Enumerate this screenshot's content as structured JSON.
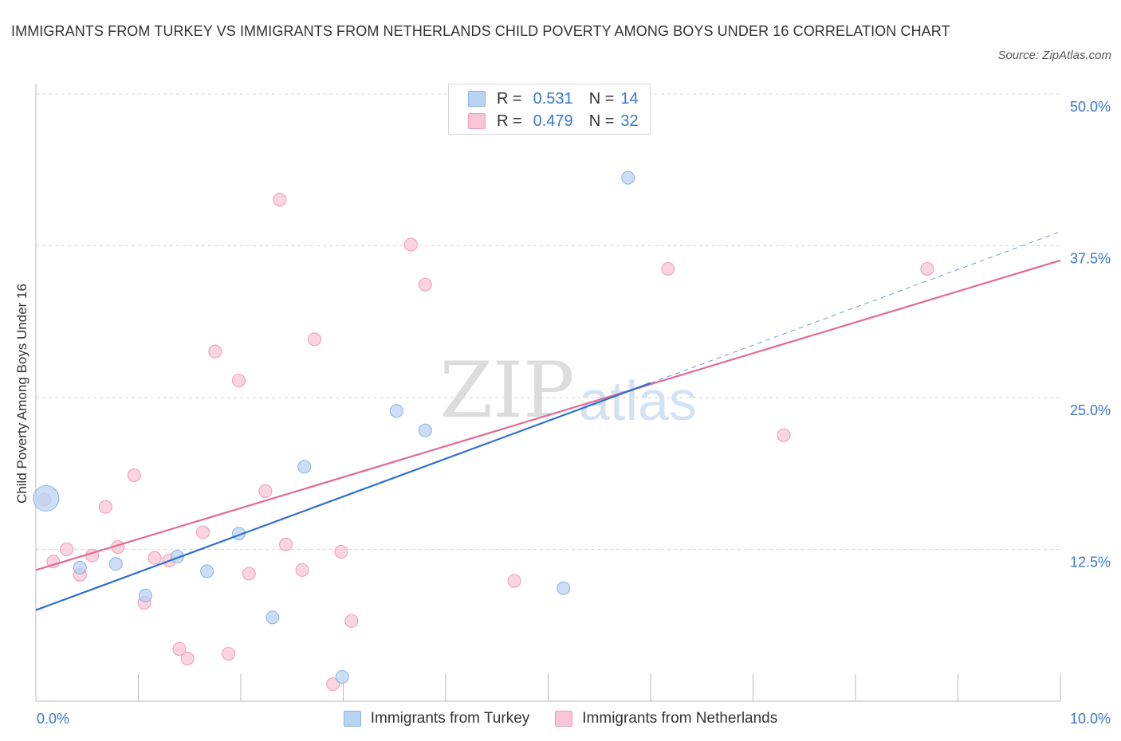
{
  "title": "IMMIGRANTS FROM TURKEY VS IMMIGRANTS FROM NETHERLANDS CHILD POVERTY AMONG BOYS UNDER 16 CORRELATION CHART",
  "source": "Source: ZipAtlas.com",
  "watermark": {
    "zip": "ZIP",
    "atlas": "atlas"
  },
  "colors": {
    "turkey_fill": "#b9d3f2",
    "turkey_stroke": "#8ab1e4",
    "turkey_line": "#2f6fcf",
    "netherlands_fill": "#f8c6d5",
    "netherlands_stroke": "#ee9ab5",
    "netherlands_line": "#e06b93",
    "value_text": "#3a78c9",
    "grid": "#d6d6d6"
  },
  "legend_top": [
    {
      "r_label": "R =",
      "r_value": "0.531",
      "n_label": "N =",
      "n_value": "14"
    },
    {
      "r_label": "R =",
      "r_value": "0.479",
      "n_label": "N =",
      "n_value": "32"
    }
  ],
  "legend_bottom": [
    "Immigrants from Turkey",
    "Immigrants from Netherlands"
  ],
  "chart_data": {
    "type": "scatter",
    "title": "IMMIGRANTS FROM TURKEY VS IMMIGRANTS FROM NETHERLANDS CHILD POVERTY AMONG BOYS UNDER 16 CORRELATION CHART",
    "xlabel": "",
    "ylabel": "Child Poverty Among Boys Under 16",
    "xlim": [
      0,
      10
    ],
    "ylim": [
      0,
      50
    ],
    "x_tick_labels": [
      "0.0%",
      "10.0%"
    ],
    "y_ticks": [
      12.5,
      25.0,
      37.5,
      50.0
    ],
    "y_tick_labels": [
      "12.5%",
      "25.0%",
      "37.5%",
      "50.0%"
    ],
    "grid": "horizontal dashed",
    "legend_position": "bottom",
    "series": [
      {
        "name": "Immigrants from Turkey",
        "r": 0.531,
        "n": 14,
        "points": [
          {
            "x": 0.1,
            "y": 16.7,
            "large": true
          },
          {
            "x": 0.43,
            "y": 11.0
          },
          {
            "x": 0.78,
            "y": 11.3
          },
          {
            "x": 1.07,
            "y": 8.7
          },
          {
            "x": 1.38,
            "y": 11.9
          },
          {
            "x": 1.67,
            "y": 10.7
          },
          {
            "x": 1.98,
            "y": 13.8
          },
          {
            "x": 2.31,
            "y": 6.9
          },
          {
            "x": 2.62,
            "y": 19.3
          },
          {
            "x": 2.99,
            "y": 2.0
          },
          {
            "x": 3.52,
            "y": 23.9
          },
          {
            "x": 3.8,
            "y": 22.3
          },
          {
            "x": 5.15,
            "y": 9.3
          },
          {
            "x": 5.78,
            "y": 43.1
          }
        ],
        "trend": {
          "x": [
            0,
            6.0
          ],
          "y": [
            7.5,
            26.2
          ]
        }
      },
      {
        "name": "Immigrants from Netherlands",
        "r": 0.479,
        "n": 32,
        "points": [
          {
            "x": 0.08,
            "y": 16.6
          },
          {
            "x": 0.17,
            "y": 11.5
          },
          {
            "x": 0.3,
            "y": 12.5
          },
          {
            "x": 0.43,
            "y": 10.4
          },
          {
            "x": 0.55,
            "y": 12.0
          },
          {
            "x": 0.68,
            "y": 16.0
          },
          {
            "x": 0.8,
            "y": 12.7
          },
          {
            "x": 0.96,
            "y": 18.6
          },
          {
            "x": 1.06,
            "y": 8.1
          },
          {
            "x": 1.16,
            "y": 11.8
          },
          {
            "x": 1.3,
            "y": 11.6
          },
          {
            "x": 1.4,
            "y": 4.3
          },
          {
            "x": 1.48,
            "y": 3.5
          },
          {
            "x": 1.63,
            "y": 13.9
          },
          {
            "x": 1.75,
            "y": 28.8
          },
          {
            "x": 1.88,
            "y": 3.9
          },
          {
            "x": 1.98,
            "y": 26.4
          },
          {
            "x": 2.08,
            "y": 10.5
          },
          {
            "x": 2.24,
            "y": 17.3
          },
          {
            "x": 2.38,
            "y": 41.3
          },
          {
            "x": 2.44,
            "y": 12.9
          },
          {
            "x": 2.6,
            "y": 10.8
          },
          {
            "x": 2.72,
            "y": 29.8
          },
          {
            "x": 2.9,
            "y": 1.4
          },
          {
            "x": 2.98,
            "y": 12.3
          },
          {
            "x": 3.08,
            "y": 6.6
          },
          {
            "x": 3.66,
            "y": 37.6
          },
          {
            "x": 3.8,
            "y": 34.3
          },
          {
            "x": 4.67,
            "y": 9.9
          },
          {
            "x": 6.17,
            "y": 35.6
          },
          {
            "x": 7.3,
            "y": 21.9
          },
          {
            "x": 8.7,
            "y": 35.6
          }
        ],
        "trend": {
          "x": [
            0,
            10
          ],
          "y": [
            10.8,
            36.3
          ]
        }
      }
    ]
  }
}
